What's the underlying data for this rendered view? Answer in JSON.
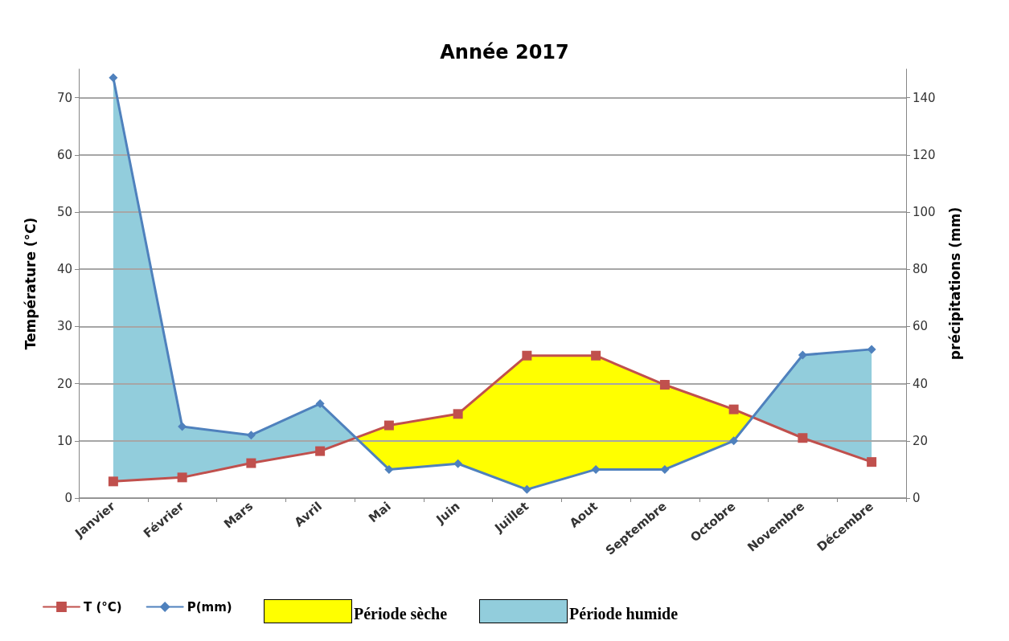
{
  "chart_data": {
    "type": "line",
    "title": "Année 2017",
    "ylabel": "Température (°C)",
    "y2label": "précipitations (mm)",
    "categories": [
      "Janvier",
      "Février",
      "Mars",
      "Avril",
      "Mai",
      "Juin",
      "Juillet",
      "Aout",
      "Septembre",
      "Octobre",
      "Novembre",
      "Décembre"
    ],
    "series": [
      {
        "name": "T (°C)",
        "color": "#c0504d",
        "marker": "square",
        "values": [
          2.9,
          3.6,
          6.1,
          8.2,
          12.7,
          14.7,
          24.9,
          24.9,
          19.8,
          15.5,
          10.5,
          6.3
        ]
      },
      {
        "name": "P(mm)",
        "color": "#4f81bd",
        "marker": "diamond",
        "axis": "y2",
        "values": [
          147,
          25,
          22,
          33,
          10,
          12,
          3,
          10,
          10,
          20,
          50,
          52
        ]
      }
    ],
    "annotations": [
      "Période sèche",
      "Période humide"
    ],
    "ylim": [
      0,
      75
    ],
    "yticks": [
      0,
      10,
      20,
      30,
      40,
      50,
      60,
      70
    ],
    "y2lim": [
      0,
      150
    ],
    "y2ticks": [
      0,
      20,
      40,
      60,
      80,
      100,
      120,
      140
    ],
    "grid": "y",
    "legend": "bottom left"
  }
}
